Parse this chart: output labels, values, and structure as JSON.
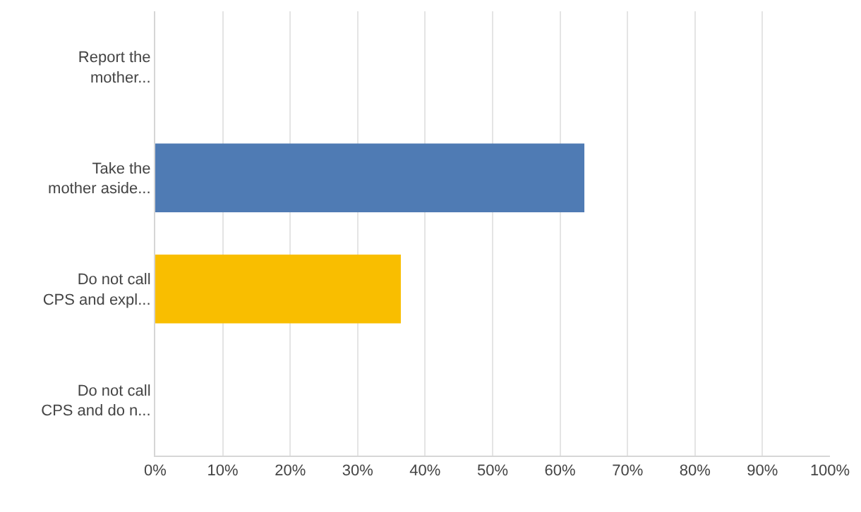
{
  "chart_data": {
    "type": "bar",
    "orientation": "horizontal",
    "categories": [
      "Report the\nmother...",
      "Take the\nmother aside...",
      "Do not call\nCPS and expl...",
      "Do not call\nCPS and do n..."
    ],
    "values": [
      0,
      63.6,
      36.4,
      0
    ],
    "colors": [
      "#4f7bb4",
      "#4f7bb4",
      "#f9be00",
      "#4f7bb4"
    ],
    "xlim": [
      0,
      100
    ],
    "xticks": [
      {
        "value": 0,
        "label": "0%"
      },
      {
        "value": 10,
        "label": "10%"
      },
      {
        "value": 20,
        "label": "20%"
      },
      {
        "value": 30,
        "label": "30%"
      },
      {
        "value": 40,
        "label": "40%"
      },
      {
        "value": 50,
        "label": "50%"
      },
      {
        "value": 60,
        "label": "60%"
      },
      {
        "value": 70,
        "label": "70%"
      },
      {
        "value": 80,
        "label": "80%"
      },
      {
        "value": 90,
        "label": "90%"
      },
      {
        "value": 100,
        "label": "100%"
      }
    ],
    "grid": "x"
  }
}
